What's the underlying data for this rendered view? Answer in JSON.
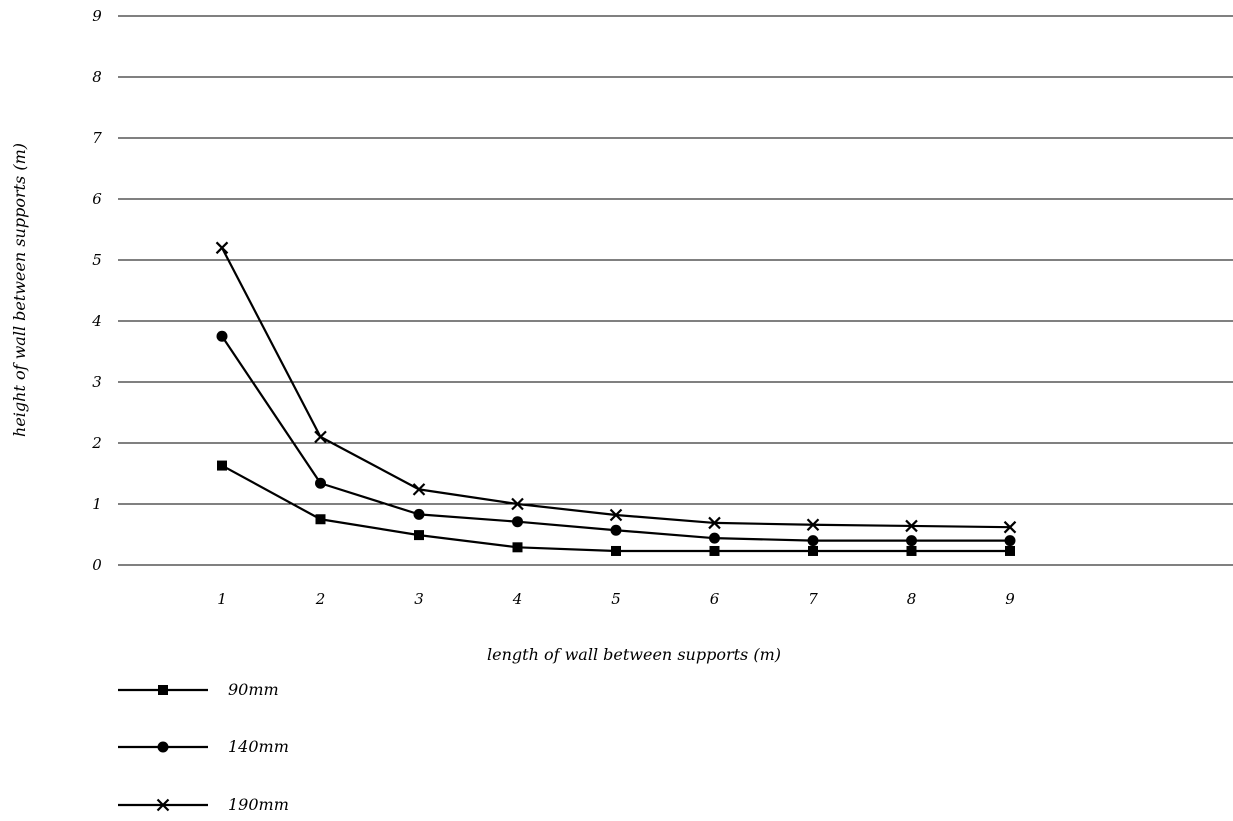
{
  "chart_data": {
    "type": "line",
    "title": "",
    "xlabel": "length of wall between supports (m)",
    "ylabel": "height of wall between supports (m)",
    "categories": [
      "1",
      "2",
      "3",
      "4",
      "5",
      "6",
      "7",
      "8",
      "9"
    ],
    "ylim": [
      0,
      9
    ],
    "yticks": [
      "0",
      "1",
      "2",
      "3",
      "4",
      "5",
      "6",
      "7",
      "8",
      "9"
    ],
    "grid": true,
    "legend_position": "bottom-left",
    "line_color": "#000000",
    "series": [
      {
        "name": "90mm",
        "marker": "square",
        "values": [
          1.63,
          0.75,
          0.49,
          0.29,
          0.23,
          0.23,
          0.23,
          0.23,
          0.23
        ]
      },
      {
        "name": "140mm",
        "marker": "circle",
        "values": [
          3.75,
          1.34,
          0.83,
          0.71,
          0.57,
          0.44,
          0.4,
          0.4,
          0.4
        ]
      },
      {
        "name": "190mm",
        "marker": "x",
        "values": [
          5.2,
          2.1,
          1.24,
          1.0,
          0.82,
          0.69,
          0.66,
          0.64,
          0.62
        ]
      }
    ]
  }
}
